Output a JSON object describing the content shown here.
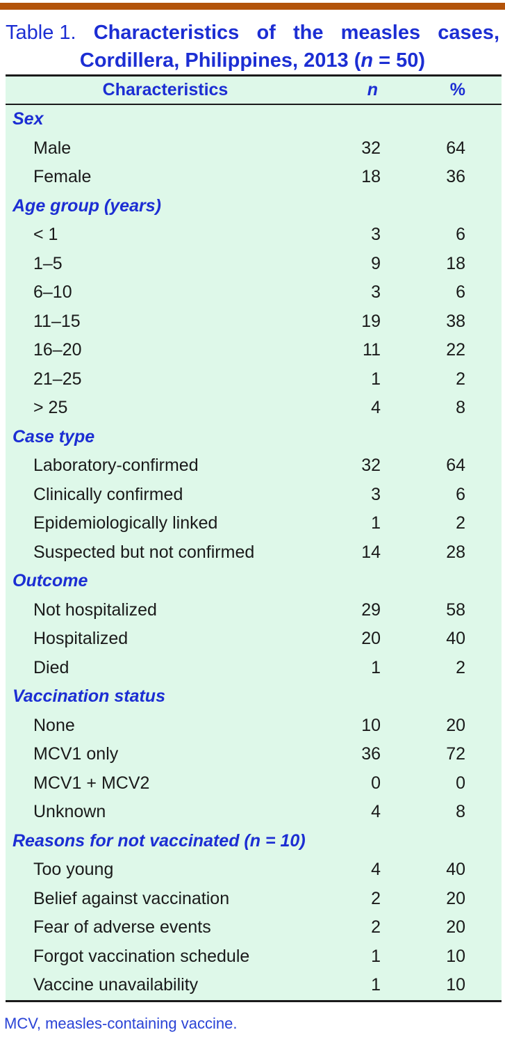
{
  "colors": {
    "bar_color": "#b35309",
    "accent_blue": "#1c2ed3",
    "footnote_blue": "#2a43d6",
    "table_bg": "#def8e9",
    "text_black": "#1a1a1a",
    "rule_color": "#1a1a1a"
  },
  "title": {
    "label": "Table 1.",
    "line1_words": [
      "Characteristics",
      "of",
      "the",
      "measles",
      "cases,"
    ],
    "line2_pre": "Cordillera, Philippines, 2013 (",
    "line2_italic": "n",
    "line2_post": " = 50)"
  },
  "table": {
    "header": {
      "characteristics": "Characteristics",
      "n": "n",
      "pct": "%"
    },
    "rows": [
      {
        "label": "Sex",
        "section": true
      },
      {
        "label": "Male",
        "n": "32",
        "pct": "64"
      },
      {
        "label": "Female",
        "n": "18",
        "pct": "36"
      },
      {
        "label": "Age group (years)",
        "section": true
      },
      {
        "label": "< 1",
        "n": "3",
        "pct": "6"
      },
      {
        "label": "1–5",
        "n": "9",
        "pct": "18"
      },
      {
        "label": "6–10",
        "n": "3",
        "pct": "6"
      },
      {
        "label": "11–15",
        "n": "19",
        "pct": "38"
      },
      {
        "label": "16–20",
        "n": "11",
        "pct": "22"
      },
      {
        "label": "21–25",
        "n": "1",
        "pct": "2"
      },
      {
        "label": "> 25",
        "n": "4",
        "pct": "8"
      },
      {
        "label": "Case type",
        "section": true
      },
      {
        "label": "Laboratory-confirmed",
        "n": "32",
        "pct": "64"
      },
      {
        "label": "Clinically confirmed",
        "n": "3",
        "pct": "6"
      },
      {
        "label": "Epidemiologically linked",
        "n": "1",
        "pct": "2"
      },
      {
        "label": "Suspected but not confirmed",
        "n": "14",
        "pct": "28"
      },
      {
        "label": "Outcome",
        "section": true
      },
      {
        "label": "Not hospitalized",
        "n": "29",
        "pct": "58"
      },
      {
        "label": "Hospitalized",
        "n": "20",
        "pct": "40"
      },
      {
        "label": "Died",
        "n": "1",
        "pct": "2"
      },
      {
        "label": "Vaccination status",
        "section": true
      },
      {
        "label": "None",
        "n": "10",
        "pct": "20"
      },
      {
        "label": "MCV1 only",
        "n": "36",
        "pct": "72"
      },
      {
        "label": "MCV1 + MCV2",
        "n": "0",
        "pct": "0"
      },
      {
        "label": "Unknown",
        "n": "4",
        "pct": "8"
      },
      {
        "label": "Reasons for not vaccinated (n = 10)",
        "section": true
      },
      {
        "label": "Too young",
        "n": "4",
        "pct": "40"
      },
      {
        "label": "Belief against vaccination",
        "n": "2",
        "pct": "20"
      },
      {
        "label": "Fear of adverse events",
        "n": "2",
        "pct": "20"
      },
      {
        "label": "Forgot vaccination schedule",
        "n": "1",
        "pct": "10"
      },
      {
        "label": "Vaccine unavailability",
        "n": "1",
        "pct": "10"
      }
    ]
  },
  "footnote": "MCV, measles-containing vaccine."
}
